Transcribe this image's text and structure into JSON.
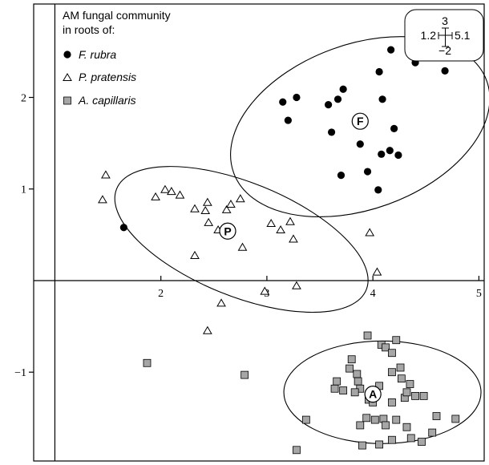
{
  "chart_data": {
    "type": "scatter",
    "title": "",
    "xlabel": "",
    "ylabel": "",
    "xlim": [
      0.8,
      5.05
    ],
    "ylim": [
      -1.97,
      3.02
    ],
    "x_ticks": [
      2,
      3,
      4,
      5
    ],
    "y_ticks": [
      -1,
      1,
      2
    ],
    "legend_title": [
      "AM fungal community",
      "in roots of:"
    ],
    "legend_position": "top-left",
    "series": [
      {
        "name": "F. rubra",
        "marker": "filled-circle",
        "color": "#000000",
        "points": [
          [
            3.15,
            1.95
          ],
          [
            3.28,
            2.0
          ],
          [
            3.2,
            1.75
          ],
          [
            3.58,
            1.92
          ],
          [
            3.67,
            1.98
          ],
          [
            3.72,
            2.09
          ],
          [
            3.61,
            1.62
          ],
          [
            3.88,
            1.49
          ],
          [
            3.7,
            1.15
          ],
          [
            3.95,
            1.19
          ],
          [
            4.05,
            0.99
          ],
          [
            4.08,
            1.38
          ],
          [
            4.16,
            1.42
          ],
          [
            4.24,
            1.37
          ],
          [
            4.2,
            1.66
          ],
          [
            4.09,
            1.98
          ],
          [
            4.06,
            2.28
          ],
          [
            4.17,
            2.52
          ],
          [
            4.38,
            2.47
          ],
          [
            4.4,
            2.38
          ],
          [
            4.6,
            2.53
          ],
          [
            4.68,
            2.29
          ],
          [
            1.65,
            0.58
          ]
        ]
      },
      {
        "name": "P. pratensis",
        "marker": "open-triangle",
        "color": "#000000",
        "points": [
          [
            1.48,
            1.15
          ],
          [
            1.45,
            0.88
          ],
          [
            1.95,
            0.91
          ],
          [
            2.04,
            0.99
          ],
          [
            2.1,
            0.97
          ],
          [
            2.18,
            0.93
          ],
          [
            2.32,
            0.78
          ],
          [
            2.44,
            0.85
          ],
          [
            2.42,
            0.76
          ],
          [
            2.62,
            0.77
          ],
          [
            2.66,
            0.83
          ],
          [
            2.75,
            0.89
          ],
          [
            2.45,
            0.63
          ],
          [
            2.54,
            0.55
          ],
          [
            2.32,
            0.27
          ],
          [
            2.77,
            0.36
          ],
          [
            3.04,
            0.62
          ],
          [
            3.13,
            0.55
          ],
          [
            3.22,
            0.64
          ],
          [
            3.25,
            0.45
          ],
          [
            2.98,
            -0.12
          ],
          [
            3.28,
            -0.06
          ],
          [
            3.97,
            0.52
          ],
          [
            4.04,
            0.09
          ],
          [
            2.57,
            -0.25
          ],
          [
            2.44,
            -0.55
          ]
        ]
      },
      {
        "name": "A. capillaris",
        "marker": "gray-square",
        "color": "#a6a6a6",
        "points": [
          [
            1.87,
            -0.9
          ],
          [
            2.79,
            -1.03
          ],
          [
            3.37,
            -1.52
          ],
          [
            3.72,
            -1.2
          ],
          [
            3.64,
            -1.18
          ],
          [
            3.66,
            -1.1
          ],
          [
            3.78,
            -0.96
          ],
          [
            3.8,
            -0.86
          ],
          [
            3.85,
            -1.02
          ],
          [
            3.86,
            -1.1
          ],
          [
            3.88,
            -1.18
          ],
          [
            3.83,
            -1.22
          ],
          [
            3.95,
            -0.6
          ],
          [
            4.08,
            -0.7
          ],
          [
            4.12,
            -0.73
          ],
          [
            4.18,
            -0.79
          ],
          [
            4.22,
            -0.65
          ],
          [
            4.06,
            -1.15
          ],
          [
            3.96,
            -1.3
          ],
          [
            4.0,
            -1.33
          ],
          [
            4.18,
            -1.33
          ],
          [
            4.3,
            -1.28
          ],
          [
            4.32,
            -1.22
          ],
          [
            4.4,
            -1.26
          ],
          [
            4.48,
            -1.26
          ],
          [
            4.35,
            -1.13
          ],
          [
            4.27,
            -1.07
          ],
          [
            4.26,
            -0.95
          ],
          [
            4.18,
            -1.0
          ],
          [
            3.94,
            -1.5
          ],
          [
            4.02,
            -1.52
          ],
          [
            4.1,
            -1.51
          ],
          [
            4.22,
            -1.52
          ],
          [
            4.32,
            -1.6
          ],
          [
            4.18,
            -1.74
          ],
          [
            4.36,
            -1.72
          ],
          [
            4.46,
            -1.76
          ],
          [
            4.56,
            -1.66
          ],
          [
            4.6,
            -1.48
          ],
          [
            4.78,
            -1.51
          ],
          [
            3.9,
            -1.8
          ],
          [
            4.06,
            -1.79
          ],
          [
            3.88,
            -1.58
          ],
          [
            3.28,
            -1.85
          ],
          [
            4.12,
            -1.58
          ]
        ]
      }
    ],
    "centroids": [
      {
        "label": "F",
        "x": 3.88,
        "y": 1.74
      },
      {
        "label": "P",
        "x": 2.63,
        "y": 0.54
      },
      {
        "label": "A",
        "x": 4.0,
        "y": -1.24
      }
    ],
    "ellipses": [
      {
        "group": "F. rubra",
        "cx": 3.88,
        "cy": 1.68,
        "rx": 1.27,
        "ry": 0.9,
        "angle_deg": -20
      },
      {
        "group": "P. pratensis",
        "cx": 2.76,
        "cy": 0.45,
        "rx": 1.27,
        "ry": 0.62,
        "angle_deg": 22
      },
      {
        "group": "A. capillaris",
        "cx": 4.09,
        "cy": -1.22,
        "rx": 0.93,
        "ry": 0.56,
        "angle_deg": 0
      }
    ],
    "error_bar_inset": {
      "top": "3",
      "left": "1.2",
      "right": "5.1",
      "bottom": "−2"
    },
    "tick_label_text": {
      "x": [
        "2",
        "3",
        "4",
        "5"
      ],
      "y": [
        "−1",
        "1",
        "2"
      ]
    }
  }
}
